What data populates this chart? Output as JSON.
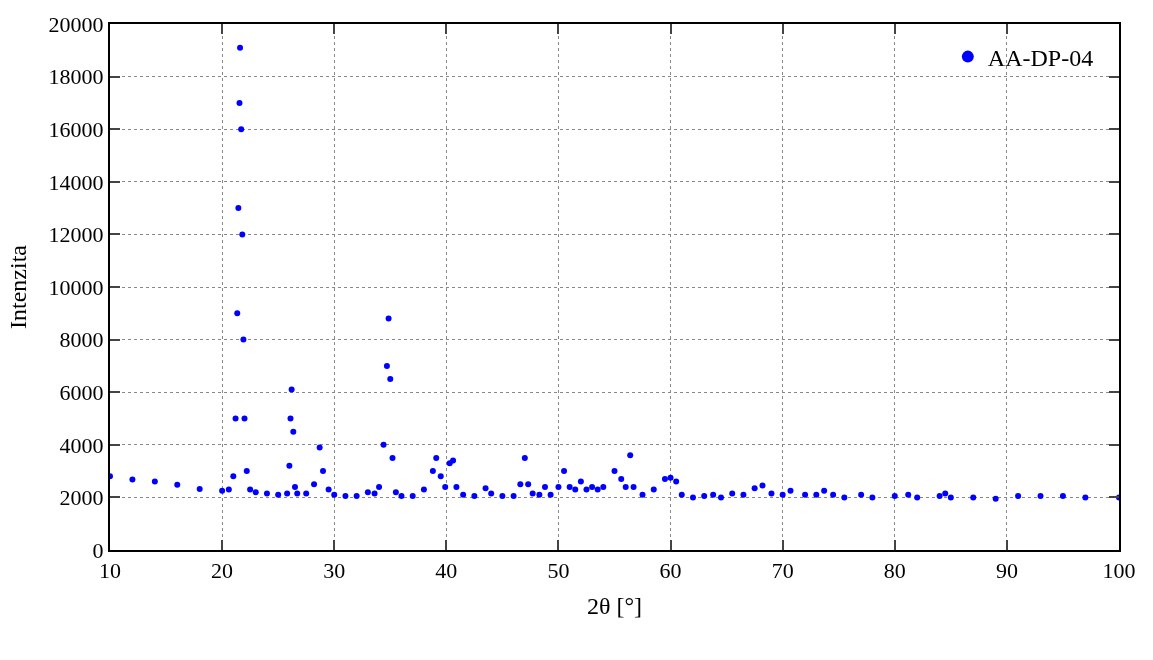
{
  "chart_data": {
    "type": "scatter",
    "xlabel": "2θ [°]",
    "ylabel": "Intenzita",
    "xlim": [
      10,
      100
    ],
    "xticks": [
      10,
      20,
      30,
      40,
      50,
      60,
      70,
      80,
      90,
      100
    ],
    "ylim": [
      0,
      20000
    ],
    "yticks": [
      0,
      2000,
      4000,
      6000,
      8000,
      10000,
      12000,
      14000,
      16000,
      18000,
      20000
    ],
    "grid": true,
    "legend": "top right",
    "marker": "circle",
    "series": [
      {
        "name": "AA-DP-04",
        "color": "#0000ff",
        "x": [
          10,
          12,
          14,
          16,
          18,
          20,
          20.6,
          21.0,
          21.2,
          21.35,
          21.45,
          21.55,
          21.6,
          21.7,
          21.8,
          21.9,
          22.0,
          22.2,
          22.5,
          23,
          24,
          25,
          25.8,
          26.0,
          26.1,
          26.2,
          26.35,
          26.5,
          26.7,
          27.5,
          28.2,
          28.7,
          29.0,
          29.5,
          30,
          31,
          32,
          33,
          33.6,
          34.0,
          34.4,
          34.7,
          34.85,
          35.0,
          35.2,
          35.5,
          36,
          37,
          38,
          38.8,
          39.1,
          39.5,
          39.9,
          40.3,
          40.6,
          40.9,
          41.5,
          42.5,
          43.5,
          44,
          45,
          46,
          46.6,
          47.0,
          47.3,
          47.7,
          48.3,
          48.8,
          49.3,
          50,
          50.5,
          51,
          51.5,
          52,
          52.5,
          53,
          53.5,
          54,
          55,
          55.6,
          56,
          56.4,
          56.7,
          57.5,
          58.5,
          59.5,
          60,
          60.5,
          61,
          62,
          63,
          63.8,
          64.5,
          65.5,
          66.5,
          67.5,
          68.2,
          69,
          70,
          70.7,
          72,
          73,
          73.7,
          74.5,
          75.5,
          77,
          78,
          80,
          81.2,
          82,
          84,
          84.5,
          85,
          87,
          89,
          91,
          93,
          95,
          97,
          100
        ],
        "values": [
          2800,
          2680,
          2600,
          2480,
          2320,
          2250,
          2300,
          2800,
          5000,
          9000,
          13000,
          17000,
          19100,
          16000,
          12000,
          8000,
          5000,
          3000,
          2300,
          2200,
          2150,
          2100,
          2150,
          3200,
          5000,
          6100,
          4500,
          2400,
          2150,
          2150,
          2500,
          3900,
          3000,
          2300,
          2100,
          2050,
          2050,
          2200,
          2150,
          2400,
          4000,
          7000,
          8800,
          6500,
          3500,
          2200,
          2050,
          2050,
          2300,
          3000,
          3500,
          2800,
          2400,
          3300,
          3400,
          2400,
          2100,
          2050,
          2350,
          2150,
          2050,
          2050,
          2500,
          3500,
          2500,
          2150,
          2100,
          2400,
          2100,
          2400,
          3000,
          2400,
          2300,
          2600,
          2300,
          2400,
          2300,
          2400,
          3000,
          2700,
          2400,
          3600,
          2400,
          2100,
          2300,
          2700,
          2750,
          2600,
          2100,
          2000,
          2050,
          2100,
          2000,
          2150,
          2100,
          2350,
          2450,
          2150,
          2100,
          2250,
          2100,
          2100,
          2250,
          2100,
          2000,
          2100,
          2000,
          2050,
          2100,
          2000,
          2050,
          2150,
          2000,
          2000,
          1950,
          2050,
          2050,
          2050,
          2000,
          2000
        ]
      }
    ]
  }
}
